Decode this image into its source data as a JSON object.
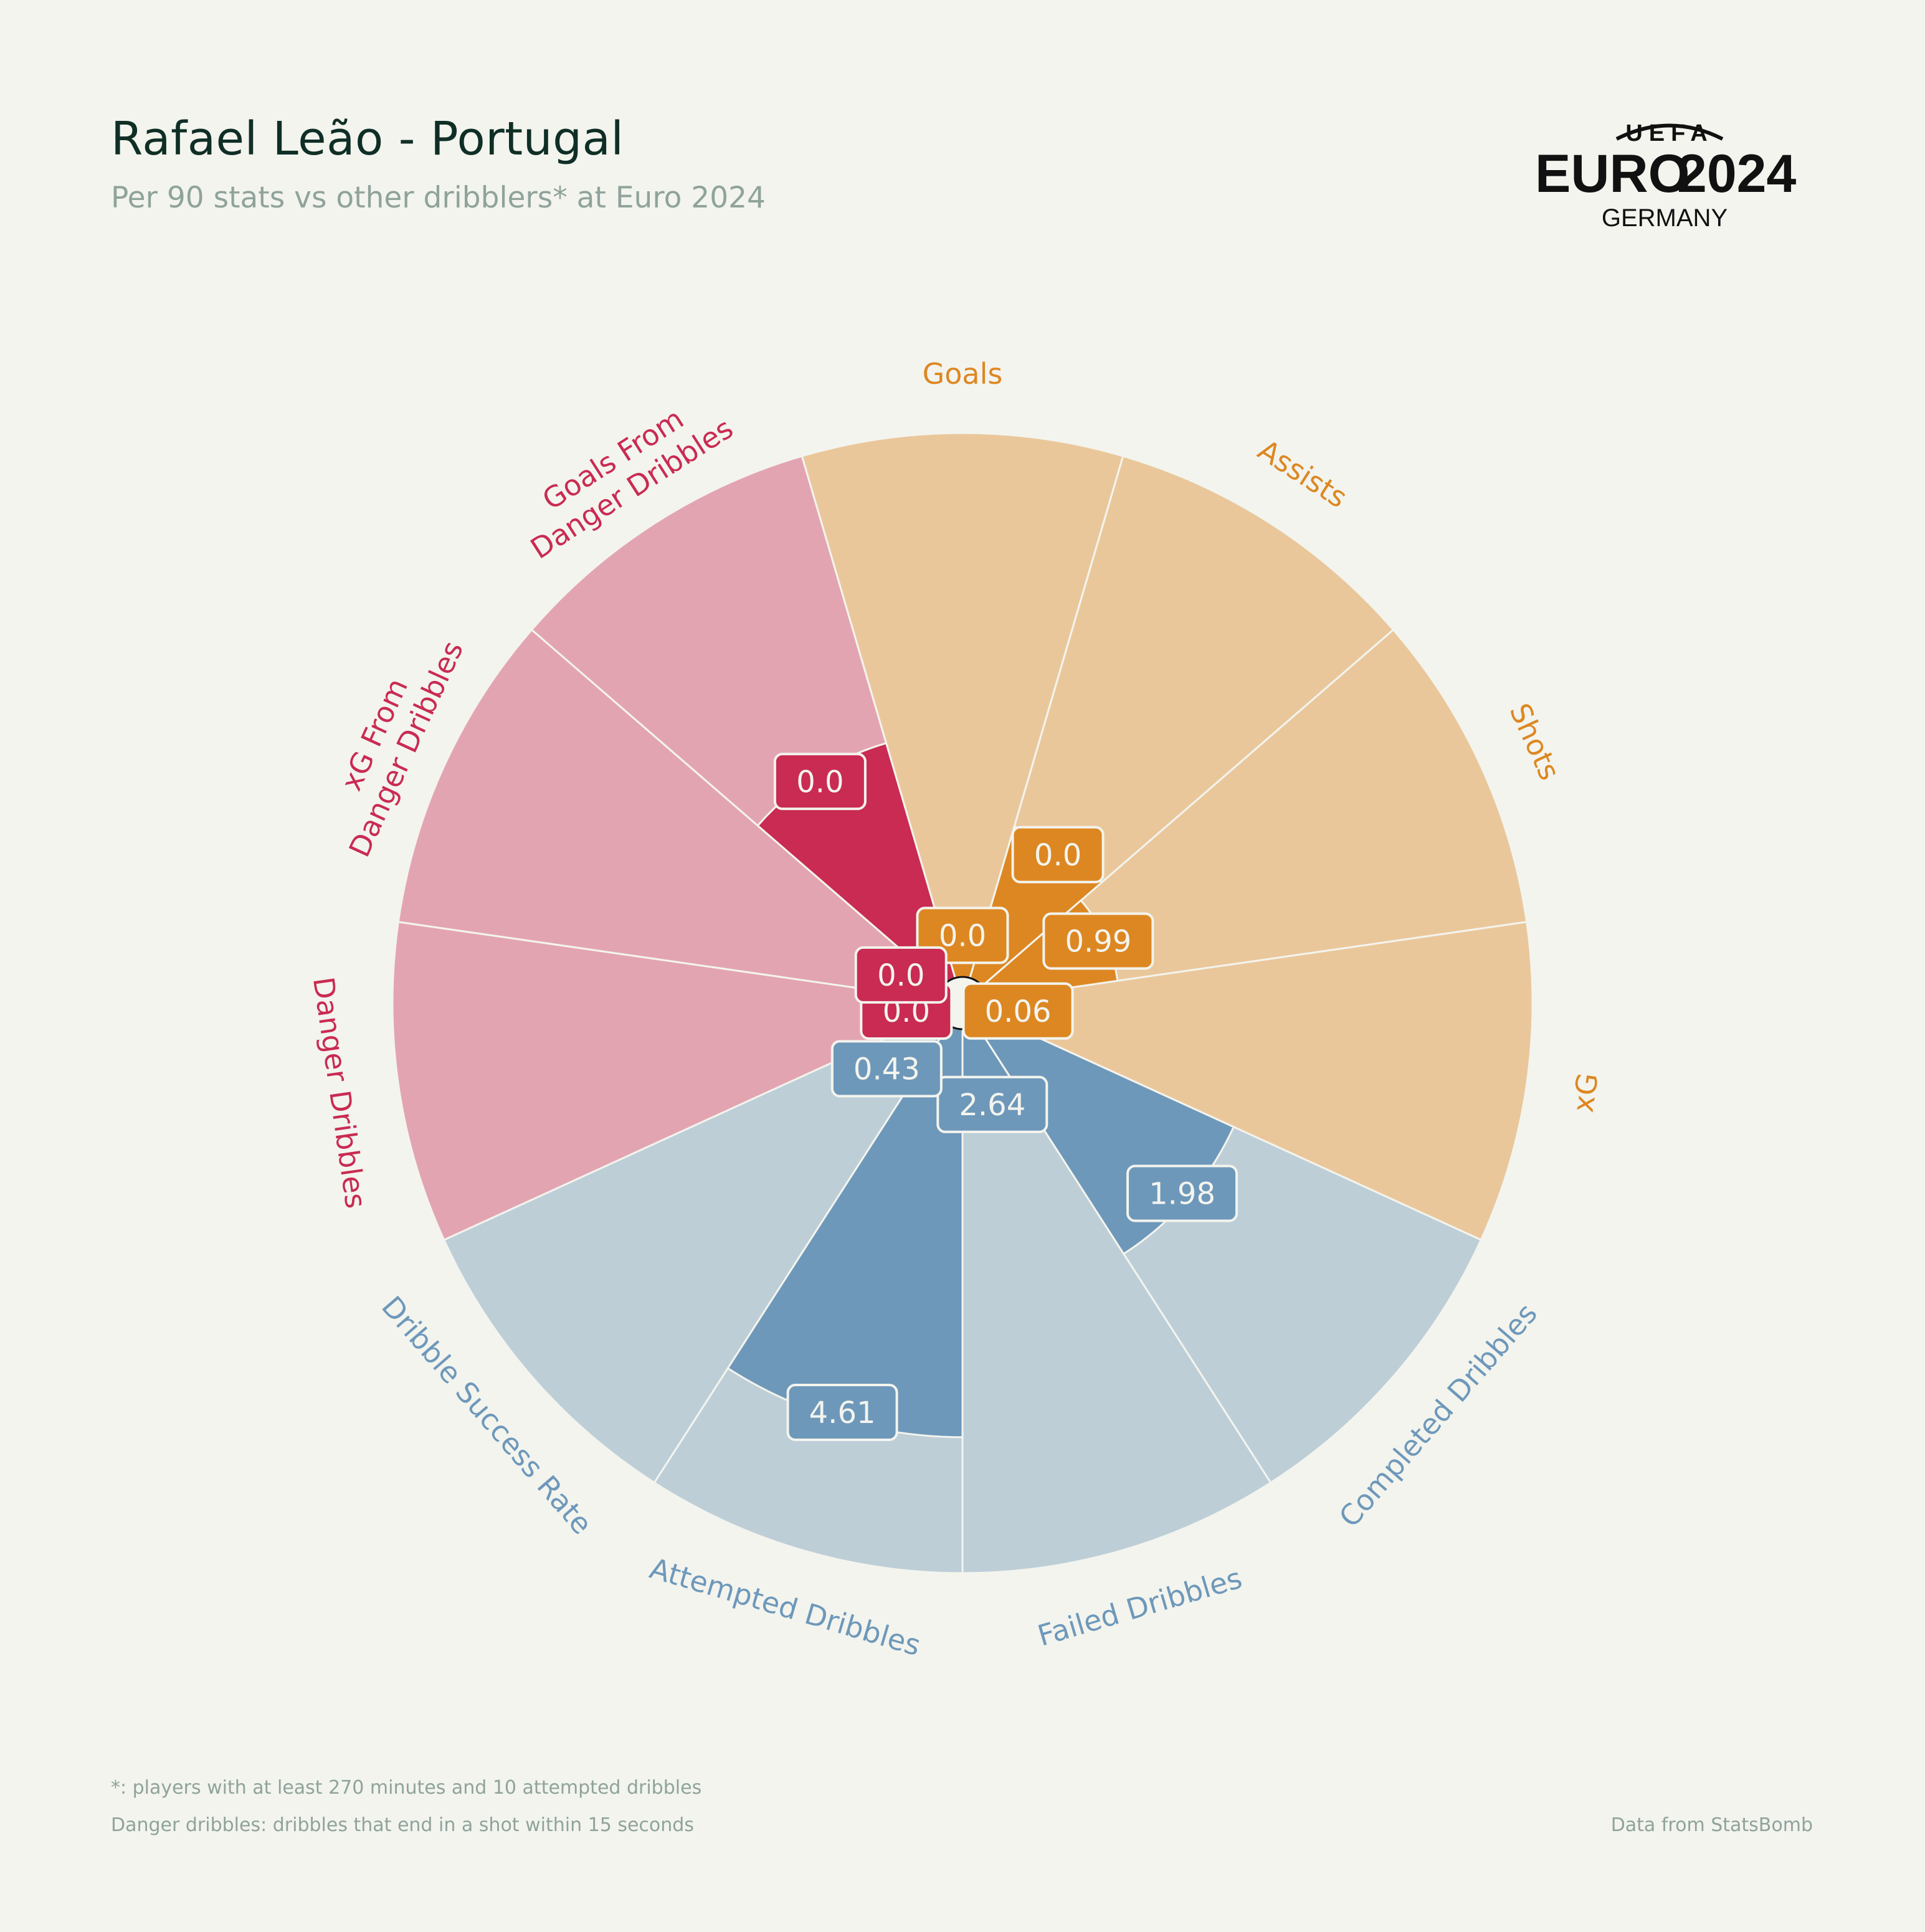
{
  "header": {
    "title": "Rafael Leão - Portugal",
    "subtitle": "Per 90 stats vs other dribblers* at Euro 2024"
  },
  "logo": {
    "top": "UEFA",
    "main_left": "EURO",
    "main_right": "2024",
    "bottom": "GERMANY"
  },
  "footer": {
    "note1": "*: players with at least 270 minutes and 10 attempted dribbles",
    "note2": "Danger dribbles: dribbles that end in a shot within 15 seconds",
    "source": "Data from StatsBomb"
  },
  "colors": {
    "attacking": "#dd8722",
    "attacking_light": "#eac79b",
    "dribbling": "#6e98ba",
    "dribbling_light": "#bdced7",
    "danger": "#c92b52",
    "danger_light": "#e3a4b1",
    "background": "#f3f4ee"
  },
  "chart_data": {
    "type": "polar-bar",
    "percentile_scale": [
      0,
      100
    ],
    "categories": [
      {
        "label": "Goals",
        "value": "0.0",
        "percentile": 9,
        "group": "attacking"
      },
      {
        "label": "Assists",
        "value": "0.0",
        "percentile": 29,
        "group": "attacking"
      },
      {
        "label": "Shots",
        "value": "0.99",
        "percentile": 24,
        "group": "attacking"
      },
      {
        "label": "xG",
        "value": "0.06",
        "percentile": 6,
        "group": "attacking"
      },
      {
        "label": "Completed Dribbles",
        "value": "1.98",
        "percentile": 50,
        "group": "dribbling"
      },
      {
        "label": "Failed Dribbles",
        "value": "2.64",
        "percentile": 16,
        "group": "dribbling"
      },
      {
        "label": "Attempted Dribbles",
        "value": "4.61",
        "percentile": 75,
        "group": "dribbling"
      },
      {
        "label": "Dribble Success Rate",
        "value": "0.43",
        "percentile": 15,
        "group": "dribbling"
      },
      {
        "label": "Danger Dribbles",
        "value": "0.0",
        "percentile": 7,
        "group": "danger"
      },
      {
        "label": "xG From\nDanger Dribbles",
        "value": "0.0",
        "percentile": 9,
        "group": "danger"
      },
      {
        "label": "Goals From\nDanger Dribbles",
        "value": "0.0",
        "percentile": 45,
        "group": "danger"
      }
    ]
  }
}
